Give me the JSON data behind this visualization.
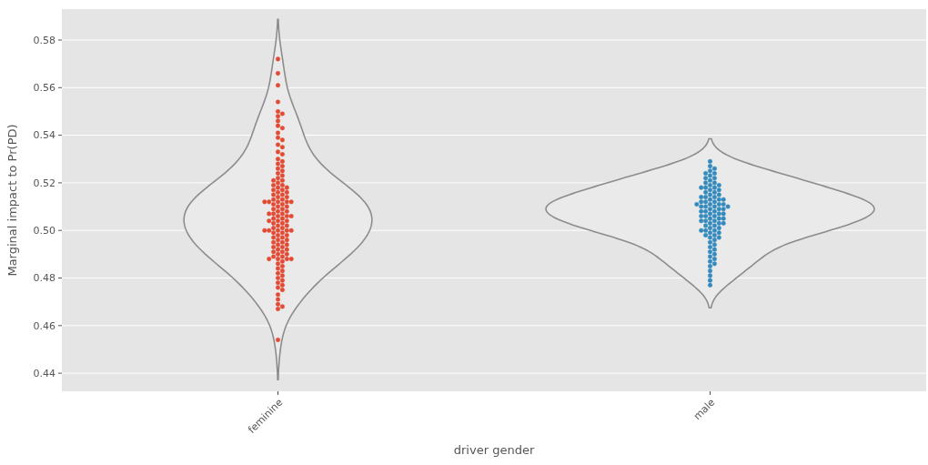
{
  "chart_data": {
    "type": "scatter",
    "xlabel": "driver gender",
    "ylabel": "Marginal impact to Pr(PD)",
    "categories": [
      "feminine",
      "male"
    ],
    "ylim": [
      0.4324,
      0.593
    ],
    "yticks": [
      {
        "value": 0.44,
        "label": "0.44"
      },
      {
        "value": 0.46,
        "label": "0.46"
      },
      {
        "value": 0.48,
        "label": "0.48"
      },
      {
        "value": 0.5,
        "label": "0.50"
      },
      {
        "value": 0.52,
        "label": "0.52"
      },
      {
        "value": 0.54,
        "label": "0.54"
      },
      {
        "value": 0.56,
        "label": "0.56"
      },
      {
        "value": 0.58,
        "label": "0.58"
      }
    ],
    "grid": "y",
    "marker": "circle",
    "series": [
      {
        "color": "#e24a33",
        "x": [
          "feminine",
          "feminine",
          "feminine",
          "feminine",
          "feminine",
          "feminine",
          "feminine",
          "feminine",
          "feminine",
          "feminine",
          "feminine",
          "feminine",
          "feminine",
          "feminine",
          "feminine",
          "feminine",
          "feminine",
          "feminine",
          "feminine",
          "feminine",
          "feminine",
          "feminine",
          "feminine",
          "feminine",
          "feminine",
          "feminine",
          "feminine",
          "feminine",
          "feminine",
          "feminine",
          "feminine",
          "feminine",
          "feminine",
          "feminine",
          "feminine",
          "feminine",
          "feminine",
          "feminine",
          "feminine",
          "feminine",
          "feminine",
          "feminine",
          "feminine",
          "feminine",
          "feminine",
          "feminine",
          "feminine",
          "feminine",
          "feminine",
          "feminine",
          "feminine",
          "feminine",
          "feminine",
          "feminine",
          "feminine",
          "feminine",
          "feminine",
          "feminine",
          "feminine",
          "feminine",
          "feminine",
          "feminine",
          "feminine",
          "feminine",
          "feminine",
          "feminine",
          "feminine",
          "feminine",
          "feminine",
          "feminine",
          "feminine",
          "feminine",
          "feminine",
          "feminine",
          "feminine",
          "feminine",
          "feminine",
          "feminine",
          "feminine",
          "feminine",
          "feminine",
          "feminine",
          "feminine",
          "feminine",
          "feminine",
          "feminine",
          "feminine",
          "feminine",
          "feminine",
          "feminine",
          "feminine",
          "feminine",
          "feminine",
          "feminine",
          "feminine",
          "feminine",
          "feminine",
          "feminine",
          "feminine",
          "feminine",
          "feminine",
          "feminine",
          "feminine",
          "feminine",
          "feminine",
          "feminine",
          "feminine",
          "feminine",
          "feminine",
          "feminine",
          "feminine",
          "feminine",
          "feminine",
          "feminine",
          "feminine",
          "feminine",
          "feminine",
          "feminine",
          "feminine",
          "feminine",
          "feminine",
          "feminine",
          "feminine"
        ],
        "values": [
          0.572,
          0.566,
          0.561,
          0.554,
          0.55,
          0.549,
          0.548,
          0.546,
          0.544,
          0.543,
          0.541,
          0.539,
          0.538,
          0.536,
          0.535,
          0.533,
          0.532,
          0.53,
          0.529,
          0.528,
          0.527,
          0.526,
          0.525,
          0.524,
          0.523,
          0.522,
          0.521,
          0.521,
          0.52,
          0.519,
          0.519,
          0.518,
          0.518,
          0.517,
          0.517,
          0.516,
          0.516,
          0.515,
          0.515,
          0.514,
          0.514,
          0.513,
          0.513,
          0.512,
          0.512,
          0.512,
          0.512,
          0.512,
          0.511,
          0.511,
          0.51,
          0.51,
          0.509,
          0.509,
          0.508,
          0.508,
          0.507,
          0.507,
          0.507,
          0.506,
          0.506,
          0.506,
          0.505,
          0.505,
          0.504,
          0.504,
          0.504,
          0.503,
          0.503,
          0.502,
          0.502,
          0.501,
          0.501,
          0.5,
          0.5,
          0.5,
          0.5,
          0.5,
          0.499,
          0.499,
          0.498,
          0.498,
          0.497,
          0.497,
          0.496,
          0.496,
          0.495,
          0.495,
          0.494,
          0.494,
          0.493,
          0.493,
          0.492,
          0.492,
          0.491,
          0.491,
          0.49,
          0.49,
          0.489,
          0.489,
          0.488,
          0.488,
          0.488,
          0.488,
          0.487,
          0.486,
          0.485,
          0.484,
          0.483,
          0.482,
          0.481,
          0.48,
          0.479,
          0.478,
          0.477,
          0.476,
          0.475,
          0.473,
          0.471,
          0.469,
          0.468,
          0.467,
          0.454
        ]
      },
      {
        "color": "#348abd",
        "x": [
          "male",
          "male",
          "male",
          "male",
          "male",
          "male",
          "male",
          "male",
          "male",
          "male",
          "male",
          "male",
          "male",
          "male",
          "male",
          "male",
          "male",
          "male",
          "male",
          "male",
          "male",
          "male",
          "male",
          "male",
          "male",
          "male",
          "male",
          "male",
          "male",
          "male",
          "male",
          "male",
          "male",
          "male",
          "male",
          "male",
          "male",
          "male",
          "male",
          "male",
          "male",
          "male",
          "male",
          "male",
          "male",
          "male",
          "male",
          "male",
          "male",
          "male",
          "male",
          "male",
          "male",
          "male",
          "male",
          "male",
          "male",
          "male",
          "male",
          "male",
          "male",
          "male",
          "male",
          "male",
          "male",
          "male",
          "male",
          "male",
          "male",
          "male",
          "male",
          "male",
          "male",
          "male",
          "male",
          "male",
          "male",
          "male",
          "male",
          "male",
          "male",
          "male",
          "male",
          "male",
          "male",
          "male",
          "male",
          "male",
          "male",
          "male"
        ],
        "values": [
          0.529,
          0.527,
          0.526,
          0.525,
          0.524,
          0.524,
          0.523,
          0.522,
          0.522,
          0.521,
          0.52,
          0.52,
          0.519,
          0.519,
          0.518,
          0.518,
          0.518,
          0.517,
          0.517,
          0.516,
          0.516,
          0.515,
          0.515,
          0.514,
          0.514,
          0.514,
          0.513,
          0.513,
          0.513,
          0.512,
          0.512,
          0.512,
          0.511,
          0.511,
          0.511,
          0.511,
          0.51,
          0.51,
          0.51,
          0.51,
          0.509,
          0.509,
          0.509,
          0.508,
          0.508,
          0.508,
          0.507,
          0.507,
          0.507,
          0.506,
          0.506,
          0.506,
          0.505,
          0.505,
          0.505,
          0.504,
          0.504,
          0.504,
          0.503,
          0.503,
          0.503,
          0.502,
          0.502,
          0.501,
          0.501,
          0.5,
          0.5,
          0.5,
          0.499,
          0.499,
          0.498,
          0.498,
          0.497,
          0.497,
          0.496,
          0.495,
          0.494,
          0.493,
          0.492,
          0.491,
          0.49,
          0.489,
          0.488,
          0.487,
          0.486,
          0.485,
          0.483,
          0.481,
          0.479,
          0.477
        ]
      }
    ]
  }
}
